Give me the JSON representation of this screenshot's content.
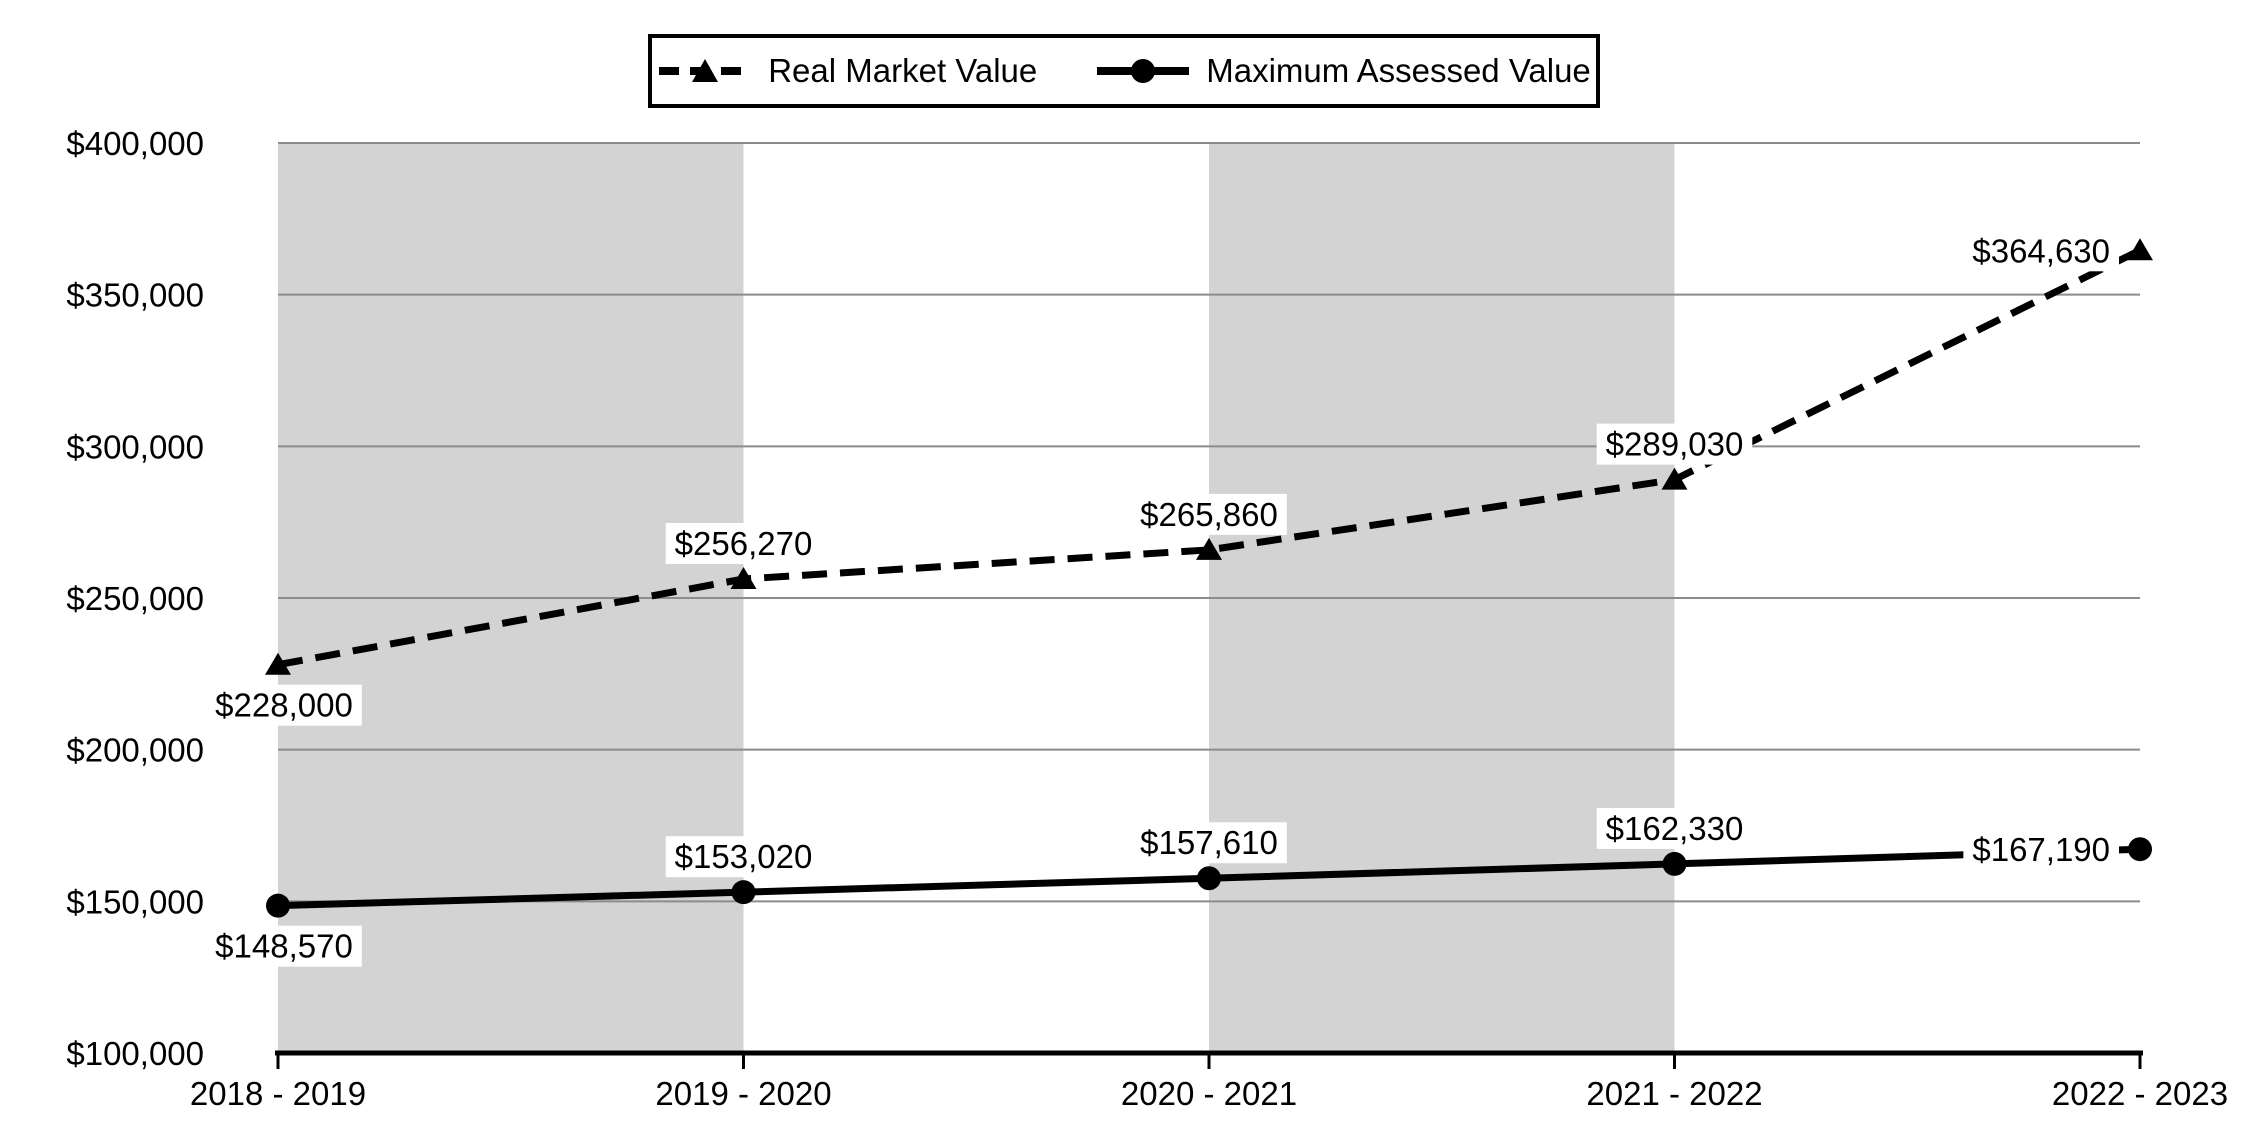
{
  "chart_data": {
    "type": "line",
    "categories": [
      "2018 - 2019",
      "2019 - 2020",
      "2020 - 2021",
      "2021 - 2022",
      "2022 - 2023"
    ],
    "series": [
      {
        "name": "Real Market Value",
        "line_style": "dashed",
        "marker": "triangle",
        "values": [
          228000,
          256270,
          265860,
          289030,
          364630
        ],
        "labels": [
          "$228,000",
          "$256,270",
          "$265,860",
          "$289,030",
          "$364,630"
        ],
        "label_side": [
          "below",
          "above",
          "above",
          "above",
          "left"
        ]
      },
      {
        "name": "Maximum Assessed Value",
        "line_style": "solid",
        "marker": "circle",
        "values": [
          148570,
          153020,
          157610,
          162330,
          167190
        ],
        "labels": [
          "$148,570",
          "$153,020",
          "$157,610",
          "$162,330",
          "$167,190"
        ],
        "label_side": [
          "below",
          "above",
          "above",
          "above",
          "left"
        ]
      }
    ],
    "y_axis": {
      "ticks": [
        {
          "value": 100000,
          "label": "$100,000"
        },
        {
          "value": 150000,
          "label": "$150,000"
        },
        {
          "value": 200000,
          "label": "$200,000"
        },
        {
          "value": 250000,
          "label": "$250,000"
        },
        {
          "value": 300000,
          "label": "$300,000"
        },
        {
          "value": 350000,
          "label": "$350,000"
        },
        {
          "value": 400000,
          "label": "$400,000"
        }
      ]
    },
    "ylim": [
      100000,
      400000
    ],
    "xlabel": "",
    "ylabel": "",
    "title": "",
    "grid": true,
    "legend_position": "top-center",
    "x_shaded_bands": [
      [
        0,
        1
      ],
      [
        2,
        3
      ]
    ],
    "colors": {
      "band": "#d3d3d3",
      "grid": "#8c8c8c",
      "axis": "#000000",
      "line": "#000000",
      "label_background": "#ffffff",
      "text": "#000000",
      "background": "#ffffff"
    }
  }
}
